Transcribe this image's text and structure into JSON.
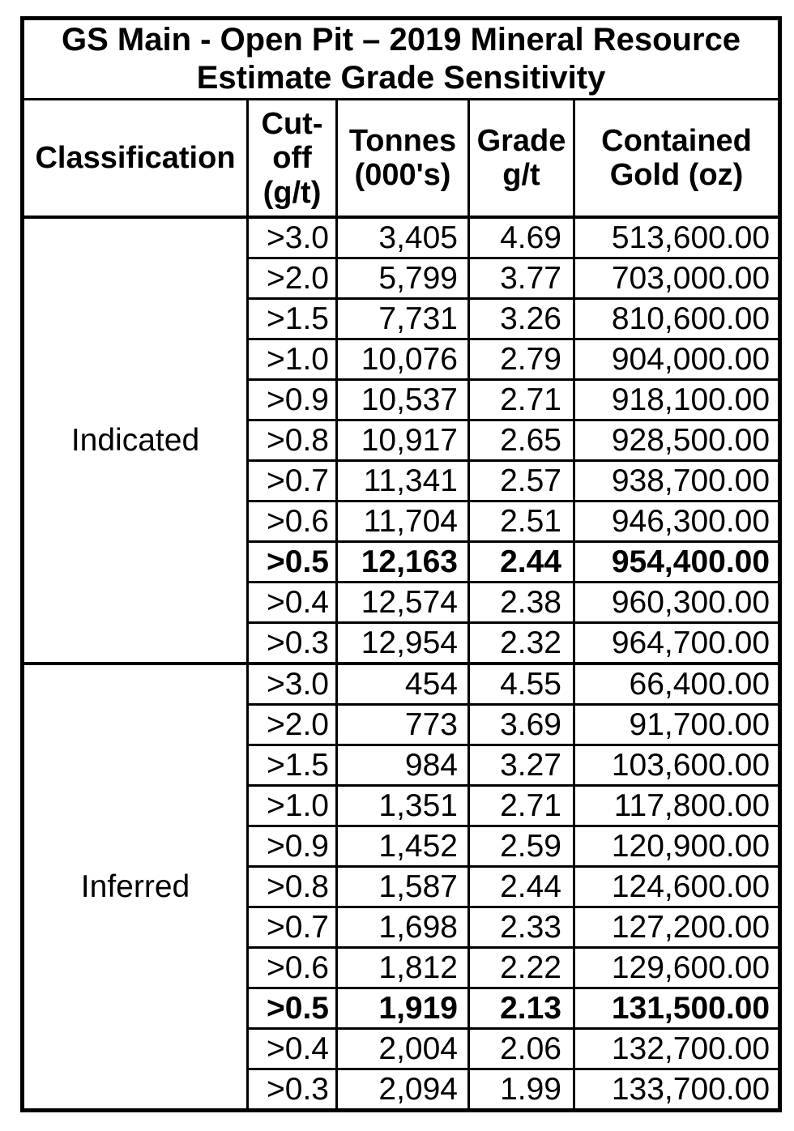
{
  "table": {
    "title": "GS Main - Open Pit – 2019 Mineral Resource\nEstimate Grade Sensitivity",
    "columns": [
      "Classification",
      "Cut-\noff\n(g/t)",
      "Tonnes\n(000's)",
      "Grade\ng/t",
      "Contained\nGold (oz)"
    ],
    "sections": [
      {
        "classification": "Indicated",
        "rows": [
          {
            "cutoff": ">3.0",
            "tonnes": "3,405",
            "grade": "4.69",
            "gold": "513,600.00",
            "bold": false
          },
          {
            "cutoff": ">2.0",
            "tonnes": "5,799",
            "grade": "3.77",
            "gold": "703,000.00",
            "bold": false
          },
          {
            "cutoff": ">1.5",
            "tonnes": "7,731",
            "grade": "3.26",
            "gold": "810,600.00",
            "bold": false
          },
          {
            "cutoff": ">1.0",
            "tonnes": "10,076",
            "grade": "2.79",
            "gold": "904,000.00",
            "bold": false
          },
          {
            "cutoff": ">0.9",
            "tonnes": "10,537",
            "grade": "2.71",
            "gold": "918,100.00",
            "bold": false
          },
          {
            "cutoff": ">0.8",
            "tonnes": "10,917",
            "grade": "2.65",
            "gold": "928,500.00",
            "bold": false
          },
          {
            "cutoff": ">0.7",
            "tonnes": "11,341",
            "grade": "2.57",
            "gold": "938,700.00",
            "bold": false
          },
          {
            "cutoff": ">0.6",
            "tonnes": "11,704",
            "grade": "2.51",
            "gold": "946,300.00",
            "bold": false
          },
          {
            "cutoff": ">0.5",
            "tonnes": "12,163",
            "grade": "2.44",
            "gold": "954,400.00",
            "bold": true
          },
          {
            "cutoff": ">0.4",
            "tonnes": "12,574",
            "grade": "2.38",
            "gold": "960,300.00",
            "bold": false
          },
          {
            "cutoff": ">0.3",
            "tonnes": "12,954",
            "grade": "2.32",
            "gold": "964,700.00",
            "bold": false
          }
        ]
      },
      {
        "classification": "Inferred",
        "rows": [
          {
            "cutoff": ">3.0",
            "tonnes": "454",
            "grade": "4.55",
            "gold": "66,400.00",
            "bold": false
          },
          {
            "cutoff": ">2.0",
            "tonnes": "773",
            "grade": "3.69",
            "gold": "91,700.00",
            "bold": false
          },
          {
            "cutoff": ">1.5",
            "tonnes": "984",
            "grade": "3.27",
            "gold": "103,600.00",
            "bold": false
          },
          {
            "cutoff": ">1.0",
            "tonnes": "1,351",
            "grade": "2.71",
            "gold": "117,800.00",
            "bold": false
          },
          {
            "cutoff": ">0.9",
            "tonnes": "1,452",
            "grade": "2.59",
            "gold": "120,900.00",
            "bold": false
          },
          {
            "cutoff": ">0.8",
            "tonnes": "1,587",
            "grade": "2.44",
            "gold": "124,600.00",
            "bold": false
          },
          {
            "cutoff": ">0.7",
            "tonnes": "1,698",
            "grade": "2.33",
            "gold": "127,200.00",
            "bold": false
          },
          {
            "cutoff": ">0.6",
            "tonnes": "1,812",
            "grade": "2.22",
            "gold": "129,600.00",
            "bold": false
          },
          {
            "cutoff": ">0.5",
            "tonnes": "1,919",
            "grade": "2.13",
            "gold": "131,500.00",
            "bold": true
          },
          {
            "cutoff": ">0.4",
            "tonnes": "2,004",
            "grade": "2.06",
            "gold": "132,700.00",
            "bold": false
          },
          {
            "cutoff": ">0.3",
            "tonnes": "2,094",
            "grade": "1.99",
            "gold": "133,700.00",
            "bold": false
          }
        ]
      }
    ],
    "text_color": "#000000",
    "border_color": "#000000",
    "background_color": "#ffffff"
  },
  "chart_data": {
    "type": "table",
    "title": "GS Main - Open Pit – 2019 Mineral Resource Estimate Grade Sensitivity",
    "columns": [
      "Classification",
      "Cut-off (g/t)",
      "Tonnes (000's)",
      "Grade g/t",
      "Contained Gold (oz)"
    ],
    "rows": [
      [
        "Indicated",
        ">3.0",
        3405,
        4.69,
        513600.0
      ],
      [
        "Indicated",
        ">2.0",
        5799,
        3.77,
        703000.0
      ],
      [
        "Indicated",
        ">1.5",
        7731,
        3.26,
        810600.0
      ],
      [
        "Indicated",
        ">1.0",
        10076,
        2.79,
        904000.0
      ],
      [
        "Indicated",
        ">0.9",
        10537,
        2.71,
        918100.0
      ],
      [
        "Indicated",
        ">0.8",
        10917,
        2.65,
        928500.0
      ],
      [
        "Indicated",
        ">0.7",
        11341,
        2.57,
        938700.0
      ],
      [
        "Indicated",
        ">0.6",
        11704,
        2.51,
        946300.0
      ],
      [
        "Indicated",
        ">0.5",
        12163,
        2.44,
        954400.0
      ],
      [
        "Indicated",
        ">0.4",
        12574,
        2.38,
        960300.0
      ],
      [
        "Indicated",
        ">0.3",
        12954,
        2.32,
        964700.0
      ],
      [
        "Inferred",
        ">3.0",
        454,
        4.55,
        66400.0
      ],
      [
        "Inferred",
        ">2.0",
        773,
        3.69,
        91700.0
      ],
      [
        "Inferred",
        ">1.5",
        984,
        3.27,
        103600.0
      ],
      [
        "Inferred",
        ">1.0",
        1351,
        2.71,
        117800.0
      ],
      [
        "Inferred",
        ">0.9",
        1452,
        2.59,
        120900.0
      ],
      [
        "Inferred",
        ">0.8",
        1587,
        2.44,
        124600.0
      ],
      [
        "Inferred",
        ">0.7",
        1698,
        2.33,
        127200.0
      ],
      [
        "Inferred",
        ">0.6",
        1812,
        2.22,
        129600.0
      ],
      [
        "Inferred",
        ">0.5",
        1919,
        2.13,
        131500.0
      ],
      [
        "Inferred",
        ">0.4",
        2004,
        2.06,
        132700.0
      ],
      [
        "Inferred",
        ">0.3",
        2094,
        1.99,
        133700.0
      ]
    ],
    "highlighted_rows_cutoff": ">0.5",
    "layout": "two merged classification groups, bold base-case row at >0.5 cut-off in each group"
  }
}
